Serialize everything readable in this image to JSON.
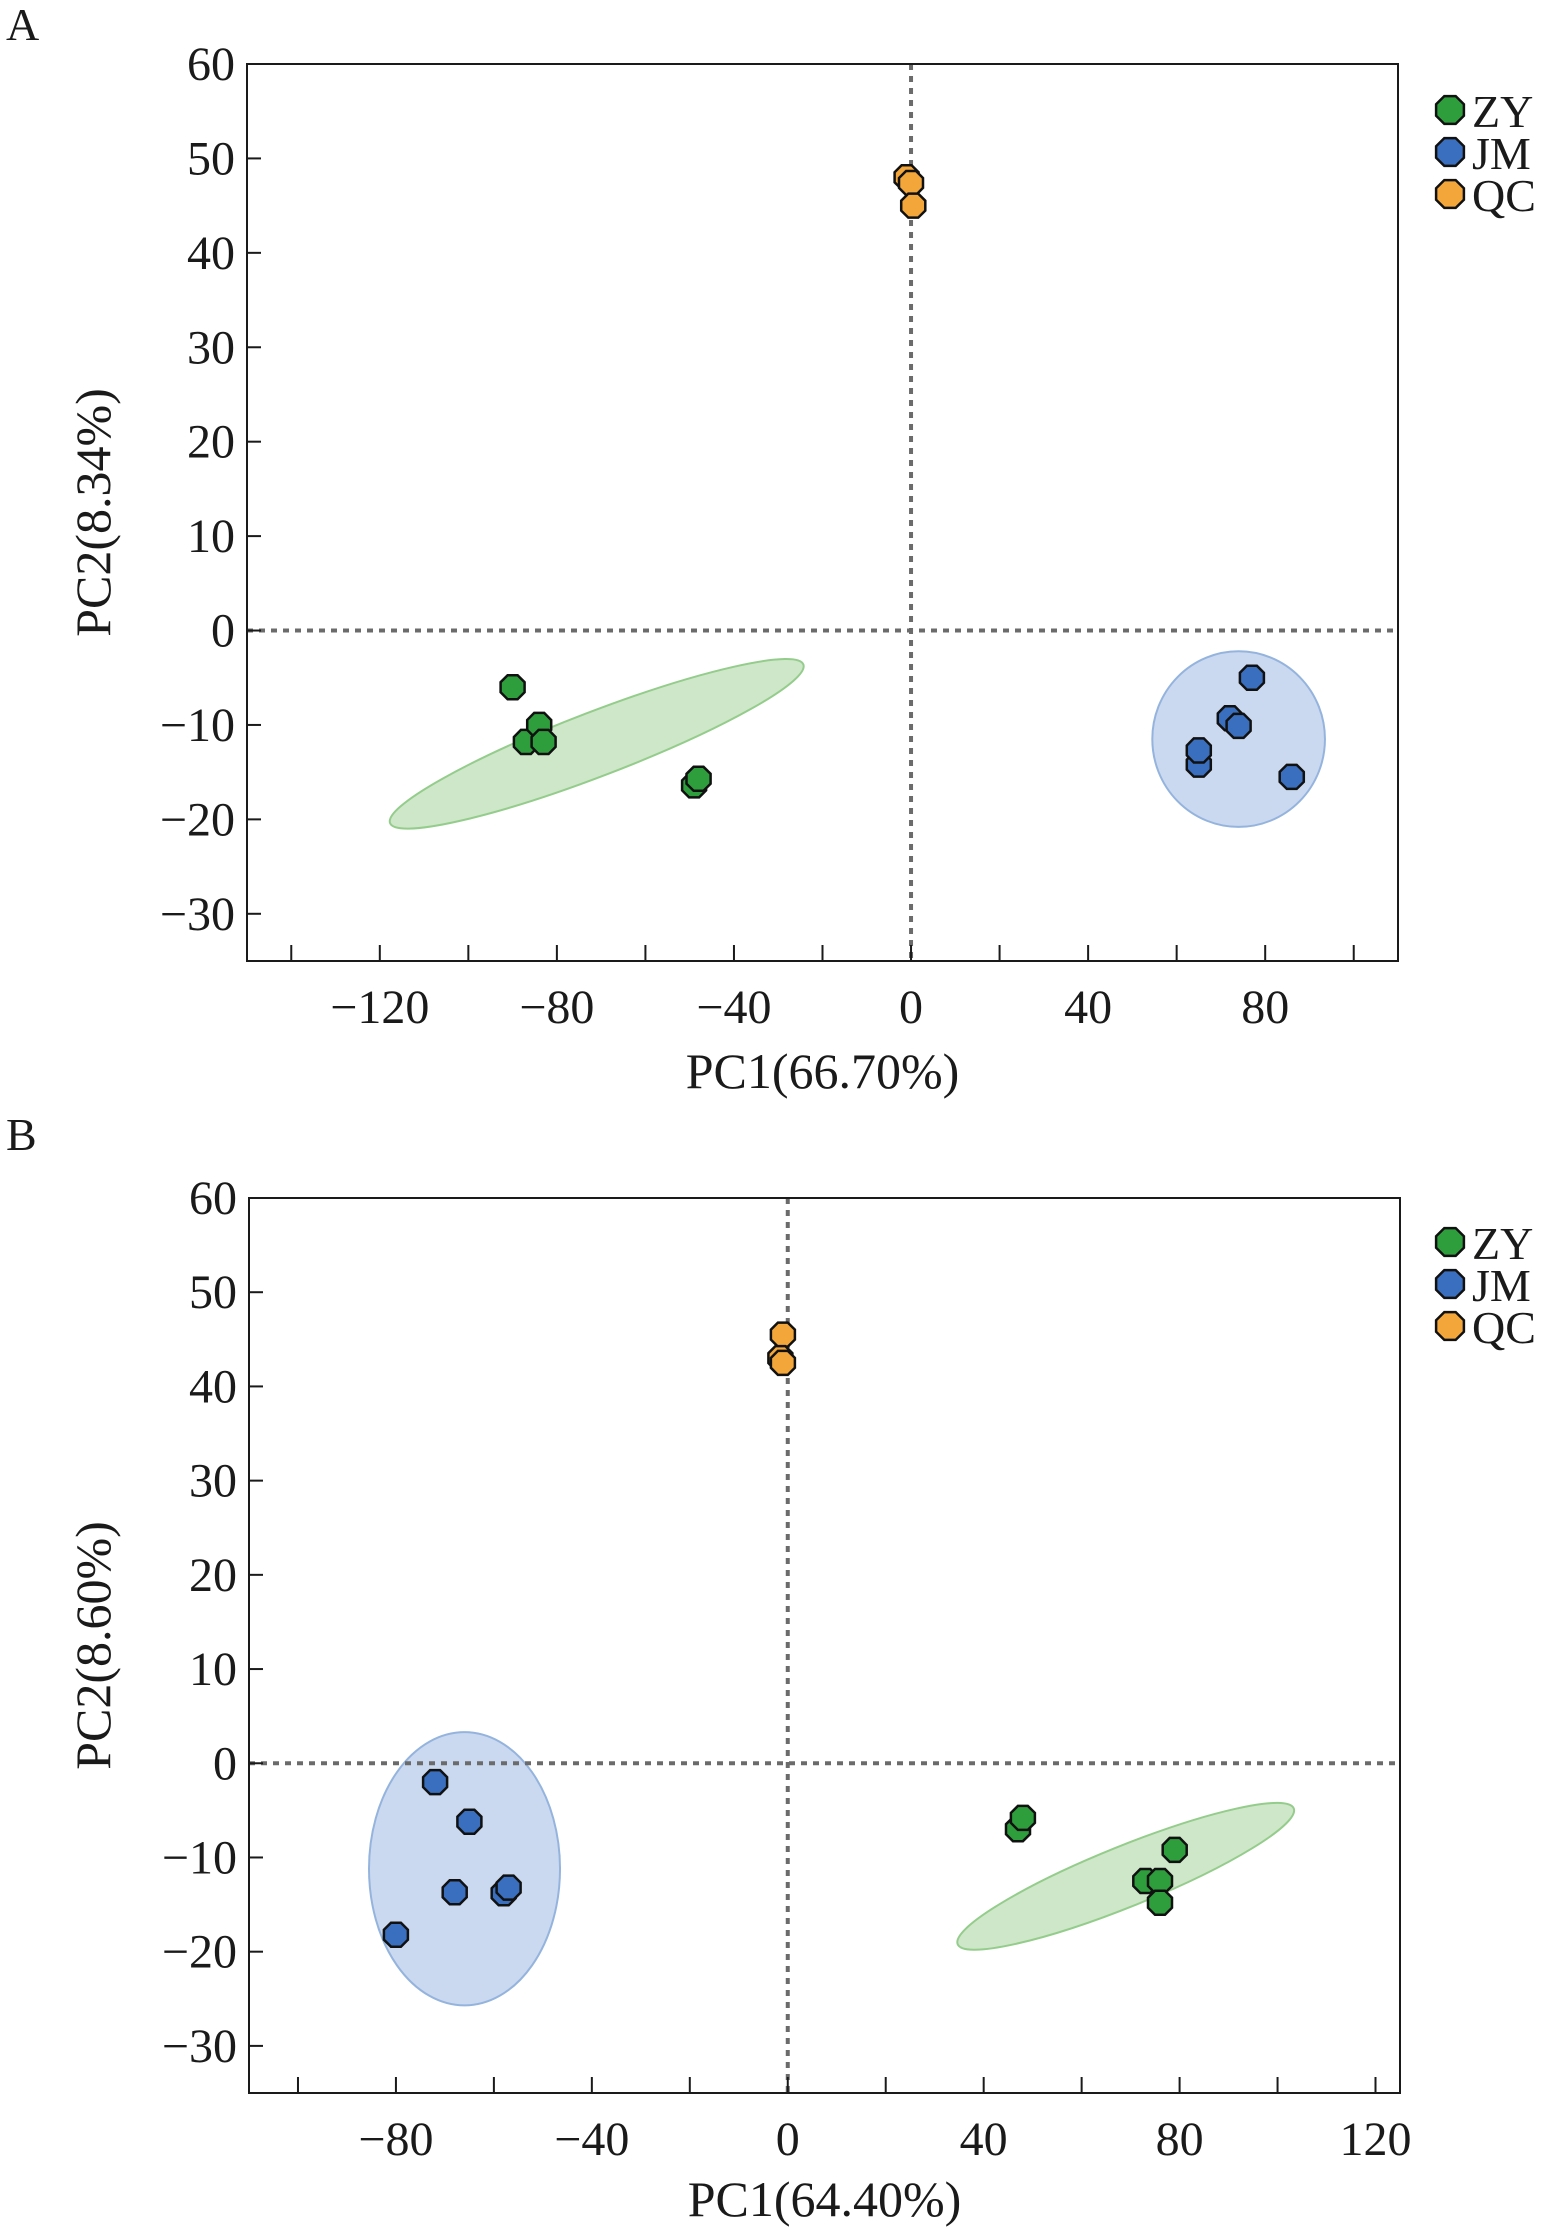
{
  "chart_data": [
    {
      "type": "scatter",
      "panel_label": "A",
      "xlabel": "PC1(66.70%)",
      "ylabel": "PC2(8.34%)",
      "xlim": [
        -150,
        110
      ],
      "ylim": [
        -35,
        60
      ],
      "x_ticks": [
        -120,
        -80,
        -40,
        0,
        40,
        80
      ],
      "x_tick_labels": [
        "−120",
        "−80",
        "−40",
        "0",
        "40",
        "80"
      ],
      "y_ticks": [
        60,
        50,
        40,
        30,
        20,
        10,
        0,
        -10,
        -20,
        -30
      ],
      "y_tick_labels": [
        "60",
        "50",
        "40",
        "30",
        "20",
        "10",
        "0",
        "−10",
        "−20",
        "−30"
      ],
      "minor_x_ticks": [
        -140,
        -100,
        -60,
        -20,
        20,
        60,
        100
      ],
      "reference_lines": {
        "x": 0,
        "y": 0
      },
      "legend_position": "top-right outside",
      "series": [
        {
          "name": "ZY",
          "color": "#2e9e3c",
          "points": [
            [
              -90,
              -6
            ],
            [
              -87,
              -11.8
            ],
            [
              -84,
              -10
            ],
            [
              -83,
              -11.8
            ],
            [
              -49,
              -16.4
            ],
            [
              -48,
              -15.7
            ]
          ],
          "ellipse": {
            "cx": -71,
            "cy": -12,
            "rx": 50,
            "ry": 3.4,
            "angle_deg": -21
          },
          "ellipse_fill": "#cce6c6",
          "ellipse_stroke": "#8fca86"
        },
        {
          "name": "JM",
          "color": "#3a6fbf",
          "points": [
            [
              65,
              -14.2
            ],
            [
              65,
              -12.7
            ],
            [
              72,
              -9.3
            ],
            [
              74,
              -10.1
            ],
            [
              77,
              -5
            ],
            [
              86,
              -15.5
            ]
          ],
          "ellipse": {
            "cx": 74,
            "cy": -11.5,
            "rx": 19.5,
            "ry": 9.3,
            "angle_deg": 0
          },
          "ellipse_fill": "#c8d7ef",
          "ellipse_stroke": "#8fb0dc"
        },
        {
          "name": "QC",
          "color": "#f3a63a",
          "points": [
            [
              -1,
              48
            ],
            [
              0,
              47.4
            ],
            [
              0.5,
              45
            ]
          ],
          "ellipse": null
        }
      ]
    },
    {
      "type": "scatter",
      "panel_label": "B",
      "xlabel": "PC1(64.40%)",
      "ylabel": "PC2(8.60%)",
      "xlim": [
        -110,
        125
      ],
      "ylim": [
        -35,
        60
      ],
      "x_ticks": [
        -80,
        -40,
        0,
        40,
        80,
        120
      ],
      "x_tick_labels": [
        "−80",
        "−40",
        "0",
        "40",
        "80",
        "120"
      ],
      "y_ticks": [
        60,
        50,
        40,
        30,
        20,
        10,
        0,
        -10,
        -20,
        -30
      ],
      "y_tick_labels": [
        "60",
        "50",
        "40",
        "30",
        "20",
        "10",
        "0",
        "−10",
        "−20",
        "−30"
      ],
      "minor_x_ticks": [
        -100,
        -60,
        -20,
        20,
        60,
        100
      ],
      "reference_lines": {
        "x": 0,
        "y": 0
      },
      "legend_position": "top-right outside",
      "series": [
        {
          "name": "ZY",
          "color": "#2e9e3c",
          "points": [
            [
              47,
              -7
            ],
            [
              48,
              -5.8
            ],
            [
              73,
              -12.5
            ],
            [
              76,
              -12.5
            ],
            [
              76,
              -14.8
            ],
            [
              79,
              -9.2
            ]
          ],
          "ellipse": {
            "cx": 69,
            "cy": -12,
            "rx": 37,
            "ry": 3.2,
            "angle_deg": -22
          },
          "ellipse_fill": "#cce6c6",
          "ellipse_stroke": "#8fca86"
        },
        {
          "name": "JM",
          "color": "#3a6fbf",
          "points": [
            [
              -80,
              -18.2
            ],
            [
              -72,
              -2
            ],
            [
              -68,
              -13.7
            ],
            [
              -65,
              -6.2
            ],
            [
              -58,
              -13.8
            ],
            [
              -57,
              -13.2
            ]
          ],
          "ellipse": {
            "cx": -66,
            "cy": -11.2,
            "rx": 19.5,
            "ry": 14.5,
            "angle_deg": 0
          },
          "ellipse_fill": "#c8d7ef",
          "ellipse_stroke": "#8fb0dc"
        },
        {
          "name": "QC",
          "color": "#f3a63a",
          "points": [
            [
              -1,
              45.5
            ],
            [
              -1.5,
              43
            ],
            [
              -1,
              42.5
            ]
          ],
          "ellipse": null
        }
      ]
    }
  ]
}
